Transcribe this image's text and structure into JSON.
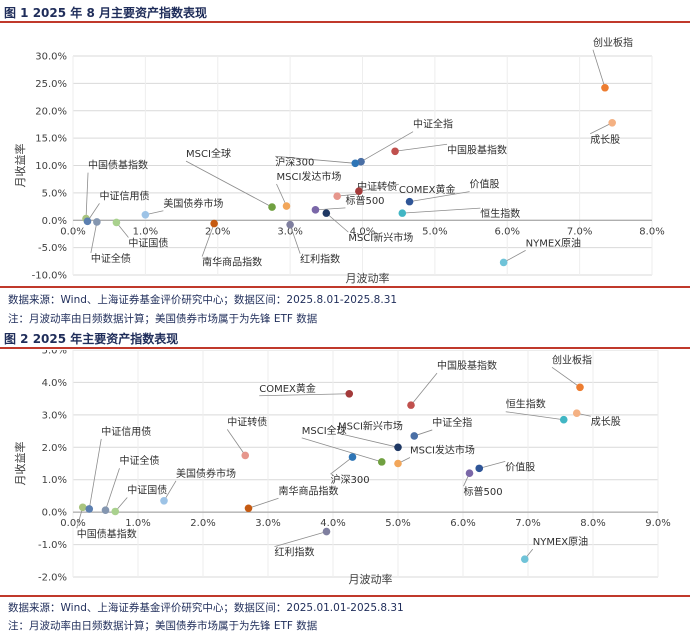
{
  "figures": [
    {
      "title": "图 1 2025 年 8 月主要资产指数表现",
      "source": "数据来源：Wind、上海证券基金评价研究中心；数据区间：2025.8.01-2025.8.31",
      "note": "注：月波动率由日频数据计算；美国债券市场属于为先锋 ETF 数据"
    },
    {
      "title": "图 2 2025 年主要资产指数表现",
      "source": "数据来源：Wind、上海证券基金评价研究中心；数据区间：2025.01.01-2025.8.31",
      "note": "注：月波动率由日频数据计算；美国债券市场属于为先锋 ETF 数据"
    }
  ],
  "chart_data": [
    {
      "type": "scatter",
      "title": "",
      "xlabel": "月波动率",
      "ylabel": "月收益率",
      "xlim": [
        0,
        8
      ],
      "ylim": [
        -10,
        30
      ],
      "x_ticks": [
        "0.0%",
        "1.0%",
        "2.0%",
        "3.0%",
        "4.0%",
        "5.0%",
        "6.0%",
        "7.0%",
        "8.0%"
      ],
      "y_ticks": [
        "-10.0%",
        "-5.0%",
        "0.0%",
        "5.0%",
        "10.0%",
        "15.0%",
        "20.0%",
        "25.0%",
        "30.0%"
      ],
      "grid": true,
      "points": [
        {
          "label": "创业板指",
          "x": 7.35,
          "y": 24.2,
          "color": "#ed7d31"
        },
        {
          "label": "成长股",
          "x": 7.45,
          "y": 17.8,
          "color": "#f4b183"
        },
        {
          "label": "中证全指",
          "x": 3.98,
          "y": 10.7,
          "color": "#4a6fa5"
        },
        {
          "label": "中国股基指数",
          "x": 4.45,
          "y": 12.6,
          "color": "#c0504d"
        },
        {
          "label": "沪深300",
          "x": 3.9,
          "y": 10.4,
          "color": "#2e75b6"
        },
        {
          "label": "中证转债",
          "x": 3.65,
          "y": 4.4,
          "color": "#e6968c"
        },
        {
          "label": "COMEX黄金",
          "x": 3.95,
          "y": 5.3,
          "color": "#a33a3a"
        },
        {
          "label": "MSCI发达市场",
          "x": 2.95,
          "y": 2.6,
          "color": "#f2a65a"
        },
        {
          "label": "MSCI全球",
          "x": 2.75,
          "y": 2.4,
          "color": "#70a040"
        },
        {
          "label": "价值股",
          "x": 4.65,
          "y": 3.4,
          "color": "#2f5597"
        },
        {
          "label": "恒生指数",
          "x": 4.55,
          "y": 1.3,
          "color": "#41b6c4"
        },
        {
          "label": "标普500",
          "x": 3.35,
          "y": 1.9,
          "color": "#7a67a8"
        },
        {
          "label": "MSCI新兴市场",
          "x": 3.5,
          "y": 1.3,
          "color": "#1f3864"
        },
        {
          "label": "中国债基指数",
          "x": 0.18,
          "y": 0.3,
          "color": "#a9c47f"
        },
        {
          "label": "中证信用债",
          "x": 0.2,
          "y": -0.2,
          "color": "#5b7fb0"
        },
        {
          "label": "中证全债",
          "x": 0.33,
          "y": -0.3,
          "color": "#8496b0"
        },
        {
          "label": "中证国债",
          "x": 0.6,
          "y": -0.4,
          "color": "#a9d18e"
        },
        {
          "label": "美国债券市场",
          "x": 1.0,
          "y": 1.0,
          "color": "#9dc3e6"
        },
        {
          "label": "南华商品指数",
          "x": 1.95,
          "y": -0.6,
          "color": "#c55a11"
        },
        {
          "label": "红利指数",
          "x": 3.0,
          "y": -0.8,
          "color": "#7f7f9f"
        },
        {
          "label": "NYMEX原油",
          "x": 5.95,
          "y": -7.7,
          "color": "#6fc3d8"
        }
      ]
    },
    {
      "type": "scatter",
      "title": "",
      "xlabel": "月波动率",
      "ylabel": "月收益率",
      "xlim": [
        0,
        9
      ],
      "ylim": [
        -2,
        5
      ],
      "x_ticks": [
        "0.0%",
        "1.0%",
        "2.0%",
        "3.0%",
        "4.0%",
        "5.0%",
        "6.0%",
        "7.0%",
        "8.0%",
        "9.0%"
      ],
      "y_ticks": [
        "-2.0%",
        "-1.0%",
        "0.0%",
        "1.0%",
        "2.0%",
        "3.0%",
        "4.0%",
        "5.0%"
      ],
      "grid": true,
      "points": [
        {
          "label": "创业板指",
          "x": 7.8,
          "y": 3.85,
          "color": "#ed7d31"
        },
        {
          "label": "成长股",
          "x": 7.75,
          "y": 3.05,
          "color": "#f4b183"
        },
        {
          "label": "恒生指数",
          "x": 7.55,
          "y": 2.85,
          "color": "#41b6c4"
        },
        {
          "label": "中国股基指数",
          "x": 5.2,
          "y": 3.3,
          "color": "#c0504d"
        },
        {
          "label": "COMEX黄金",
          "x": 4.25,
          "y": 3.65,
          "color": "#a33a3a"
        },
        {
          "label": "中证全指",
          "x": 5.25,
          "y": 2.35,
          "color": "#4a6fa5"
        },
        {
          "label": "MSCI新兴市场",
          "x": 5.0,
          "y": 2.0,
          "color": "#1f3864"
        },
        {
          "label": "MSCI全球",
          "x": 4.75,
          "y": 1.55,
          "color": "#70a040"
        },
        {
          "label": "沪深300",
          "x": 4.3,
          "y": 1.7,
          "color": "#2e75b6"
        },
        {
          "label": "MSCI发达市场",
          "x": 5.0,
          "y": 1.5,
          "color": "#f2a65a"
        },
        {
          "label": "价值股",
          "x": 6.25,
          "y": 1.35,
          "color": "#2f5597"
        },
        {
          "label": "标普500",
          "x": 6.1,
          "y": 1.2,
          "color": "#7a67a8"
        },
        {
          "label": "中证转债",
          "x": 2.65,
          "y": 1.75,
          "color": "#e6968c"
        },
        {
          "label": "美国债券市场",
          "x": 1.4,
          "y": 0.35,
          "color": "#9dc3e6"
        },
        {
          "label": "南华商品指数",
          "x": 2.7,
          "y": 0.12,
          "color": "#c55a11"
        },
        {
          "label": "红利指数",
          "x": 3.9,
          "y": -0.6,
          "color": "#7f7f9f"
        },
        {
          "label": "NYMEX原油",
          "x": 6.95,
          "y": -1.45,
          "color": "#6fc3d8"
        },
        {
          "label": "中国债基指数",
          "x": 0.15,
          "y": 0.15,
          "color": "#a9c47f"
        },
        {
          "label": "中证信用债",
          "x": 0.25,
          "y": 0.1,
          "color": "#5b7fb0"
        },
        {
          "label": "中证全债",
          "x": 0.5,
          "y": 0.06,
          "color": "#8496b0"
        },
        {
          "label": "中证国债",
          "x": 0.65,
          "y": 0.02,
          "color": "#a9d18e"
        }
      ]
    }
  ]
}
